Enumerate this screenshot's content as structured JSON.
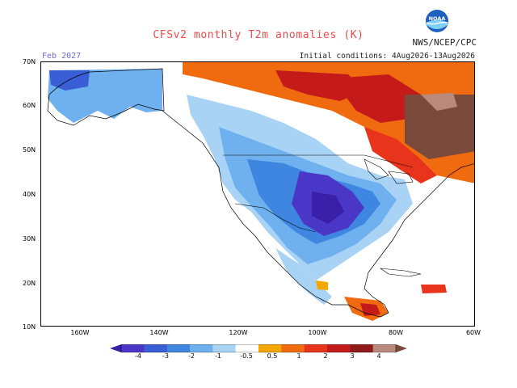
{
  "header": {
    "title": "CFSv2 monthly T2m anomalies (K)",
    "month": "Feb 2027",
    "initial_conditions": "Initial conditions: 4Aug2026-13Aug2026",
    "agency": "NWS/NCEP/CPC",
    "logo_text": "NOAA"
  },
  "axes": {
    "lat_labels": [
      "70N",
      "60N",
      "50N",
      "40N",
      "30N",
      "20N",
      "10N"
    ],
    "lon_labels": [
      "160W",
      "140W",
      "120W",
      "100W",
      "80W",
      "60W"
    ]
  },
  "colorbar": {
    "labels": [
      "-4",
      "-3",
      "-2",
      "-1",
      "-0.5",
      "0.5",
      "1",
      "2",
      "3",
      "4"
    ],
    "colors": [
      "#3a1fa8",
      "#4a37c8",
      "#3a5ed6",
      "#3f86e0",
      "#6fb0ef",
      "#a9d3f5",
      "#ffffff",
      "#f4a700",
      "#f06a10",
      "#e8341c",
      "#c41a1a",
      "#8f1a1a",
      "#b98a7c",
      "#7a4a3c"
    ]
  },
  "colors": {
    "ocean": "#ffffff",
    "coast": "#000000",
    "border": "#000000"
  }
}
